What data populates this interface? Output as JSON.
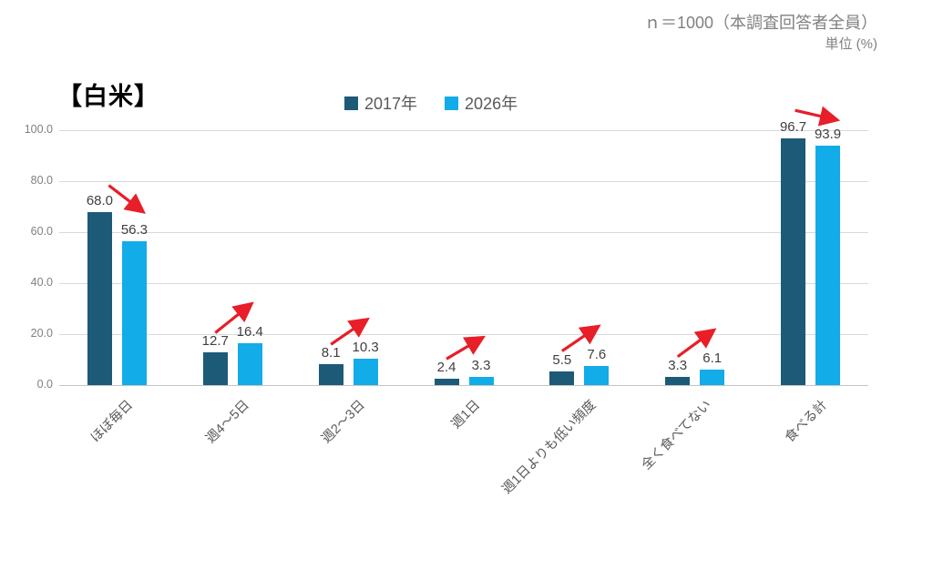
{
  "note": {
    "sample": "ｎ＝1000（本調査回答者全員）",
    "unit": "単位 (%)"
  },
  "chart_data": {
    "type": "bar",
    "title": "【白米】",
    "categories": [
      "ほぼ毎日",
      "週4～5日",
      "週2～3日",
      "週1日",
      "週1日よりも低い頻度",
      "全く食べてない",
      "食べる計"
    ],
    "series": [
      {
        "name": "2017年",
        "color": "#1C5A78",
        "values": [
          68.0,
          12.7,
          8.1,
          2.4,
          5.5,
          3.3,
          96.7
        ]
      },
      {
        "name": "2026年",
        "color": "#12ACE8",
        "values": [
          56.3,
          16.4,
          10.3,
          3.3,
          7.6,
          6.1,
          93.9
        ]
      }
    ],
    "y_ticks": [
      100.0,
      80.0,
      60.0,
      40.0,
      20.0,
      0.0
    ],
    "ylim": [
      0,
      100
    ],
    "grid": true,
    "legend_position": "top-center",
    "value_labels": true,
    "arrows": [
      "down",
      "up",
      "up",
      "up",
      "up",
      "up",
      "flat"
    ],
    "arrow_color": "#E81E28"
  }
}
